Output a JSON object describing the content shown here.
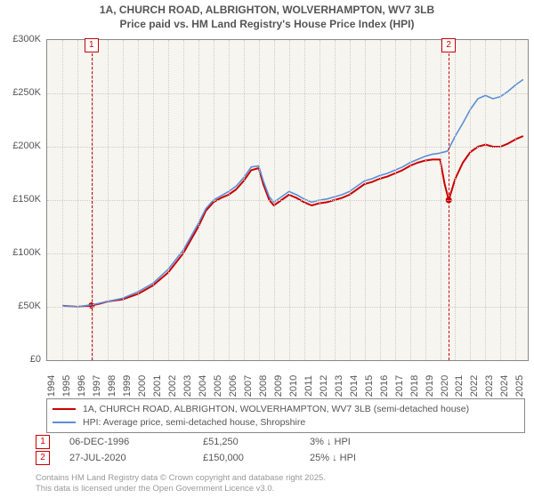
{
  "title": {
    "line1": "1A, CHURCH ROAD, ALBRIGHTON, WOLVERHAMPTON, WV7 3LB",
    "line2": "Price paid vs. HM Land Registry's House Price Index (HPI)",
    "fontsize": 12,
    "color": "#555555"
  },
  "chart": {
    "type": "line",
    "background_color": "#f6f5f0",
    "grid_color": "#cccccc",
    "border_color": "#888888",
    "x_years": [
      1994,
      1995,
      1996,
      1997,
      1998,
      1999,
      2000,
      2001,
      2002,
      2003,
      2004,
      2005,
      2006,
      2007,
      2008,
      2009,
      2010,
      2011,
      2012,
      2013,
      2014,
      2015,
      2016,
      2017,
      2018,
      2019,
      2020,
      2021,
      2022,
      2023,
      2024,
      2025
    ],
    "x_start": 1994,
    "x_end": 2025.8,
    "ylim": [
      0,
      300
    ],
    "y_ticks": [
      0,
      50,
      100,
      150,
      200,
      250,
      300
    ],
    "y_tick_labels": [
      "£0",
      "£50K",
      "£100K",
      "£150K",
      "£200K",
      "£250K",
      "£300K"
    ],
    "series": [
      {
        "name": "price_paid",
        "label": "1A, CHURCH ROAD, ALBRIGHTON, WOLVERHAMPTON, WV7 3LB (semi-detached house)",
        "color": "#cc0000",
        "width": 2.0,
        "data": [
          [
            1995.0,
            51
          ],
          [
            1996.0,
            50
          ],
          [
            1996.93,
            51.25
          ],
          [
            1997.5,
            53
          ],
          [
            1998.0,
            55
          ],
          [
            1999.0,
            57
          ],
          [
            2000.0,
            62
          ],
          [
            2001.0,
            70
          ],
          [
            2002.0,
            82
          ],
          [
            2003.0,
            100
          ],
          [
            2004.0,
            125
          ],
          [
            2004.5,
            140
          ],
          [
            2005.0,
            148
          ],
          [
            2005.5,
            152
          ],
          [
            2006.0,
            155
          ],
          [
            2006.5,
            160
          ],
          [
            2007.0,
            168
          ],
          [
            2007.5,
            178
          ],
          [
            2008.0,
            180
          ],
          [
            2008.3,
            165
          ],
          [
            2008.7,
            150
          ],
          [
            2009.0,
            145
          ],
          [
            2009.5,
            150
          ],
          [
            2010.0,
            155
          ],
          [
            2010.5,
            152
          ],
          [
            2011.0,
            148
          ],
          [
            2011.5,
            145
          ],
          [
            2012.0,
            147
          ],
          [
            2012.5,
            148
          ],
          [
            2013.0,
            150
          ],
          [
            2013.5,
            152
          ],
          [
            2014.0,
            155
          ],
          [
            2014.5,
            160
          ],
          [
            2015.0,
            165
          ],
          [
            2015.5,
            167
          ],
          [
            2016.0,
            170
          ],
          [
            2016.5,
            172
          ],
          [
            2017.0,
            175
          ],
          [
            2017.5,
            178
          ],
          [
            2018.0,
            182
          ],
          [
            2018.5,
            185
          ],
          [
            2019.0,
            187
          ],
          [
            2019.5,
            188
          ],
          [
            2020.0,
            188
          ],
          [
            2020.3,
            165
          ],
          [
            2020.57,
            150
          ],
          [
            2021.0,
            170
          ],
          [
            2021.5,
            185
          ],
          [
            2022.0,
            195
          ],
          [
            2022.5,
            200
          ],
          [
            2023.0,
            202
          ],
          [
            2023.5,
            200
          ],
          [
            2024.0,
            200
          ],
          [
            2024.5,
            203
          ],
          [
            2025.0,
            207
          ],
          [
            2025.5,
            210
          ]
        ]
      },
      {
        "name": "hpi",
        "label": "HPI: Average price, semi-detached house, Shropshire",
        "color": "#5b8fd6",
        "width": 1.6,
        "data": [
          [
            1995.0,
            51
          ],
          [
            1996.0,
            50
          ],
          [
            1997.0,
            52
          ],
          [
            1998.0,
            55
          ],
          [
            1999.0,
            58
          ],
          [
            2000.0,
            64
          ],
          [
            2001.0,
            72
          ],
          [
            2002.0,
            85
          ],
          [
            2003.0,
            103
          ],
          [
            2004.0,
            128
          ],
          [
            2004.5,
            142
          ],
          [
            2005.0,
            150
          ],
          [
            2005.5,
            154
          ],
          [
            2006.0,
            158
          ],
          [
            2006.5,
            163
          ],
          [
            2007.0,
            171
          ],
          [
            2007.5,
            181
          ],
          [
            2008.0,
            182
          ],
          [
            2008.3,
            168
          ],
          [
            2008.7,
            153
          ],
          [
            2009.0,
            148
          ],
          [
            2009.5,
            153
          ],
          [
            2010.0,
            158
          ],
          [
            2010.5,
            155
          ],
          [
            2011.0,
            151
          ],
          [
            2011.5,
            148
          ],
          [
            2012.0,
            150
          ],
          [
            2012.5,
            151
          ],
          [
            2013.0,
            153
          ],
          [
            2013.5,
            155
          ],
          [
            2014.0,
            158
          ],
          [
            2014.5,
            163
          ],
          [
            2015.0,
            168
          ],
          [
            2015.5,
            170
          ],
          [
            2016.0,
            173
          ],
          [
            2016.5,
            175
          ],
          [
            2017.0,
            178
          ],
          [
            2017.5,
            181
          ],
          [
            2018.0,
            185
          ],
          [
            2018.5,
            188
          ],
          [
            2019.0,
            191
          ],
          [
            2019.5,
            193
          ],
          [
            2020.0,
            194
          ],
          [
            2020.5,
            196
          ],
          [
            2021.0,
            210
          ],
          [
            2021.5,
            222
          ],
          [
            2022.0,
            235
          ],
          [
            2022.5,
            245
          ],
          [
            2023.0,
            248
          ],
          [
            2023.5,
            245
          ],
          [
            2024.0,
            247
          ],
          [
            2024.5,
            252
          ],
          [
            2025.0,
            258
          ],
          [
            2025.5,
            263
          ]
        ]
      }
    ],
    "transactions": [
      {
        "index": "1",
        "date": "06-DEC-1996",
        "x": 1996.93,
        "price_text": "£51,250",
        "price": 51.25,
        "delta": "3% ↓ HPI"
      },
      {
        "index": "2",
        "date": "27-JUL-2020",
        "x": 2020.57,
        "price_text": "£150,000",
        "price": 150,
        "delta": "25% ↓ HPI"
      }
    ],
    "marker_color": "#cc0000",
    "marker_point_radius": 3.5
  },
  "footer": {
    "line1": "Contains HM Land Registry data © Crown copyright and database right 2025.",
    "line2": "This data is licensed under the Open Government Licence v3.0.",
    "color": "#999999"
  }
}
